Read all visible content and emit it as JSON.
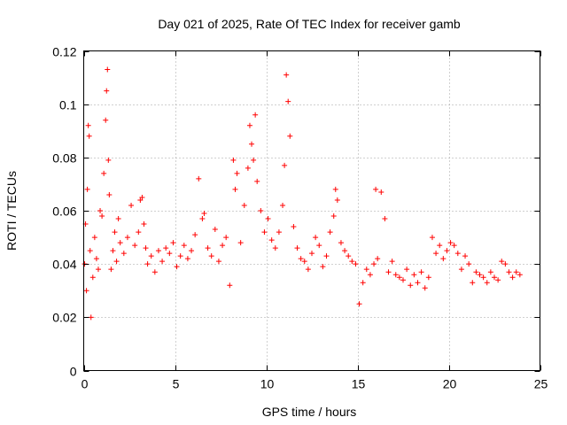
{
  "chart_data": {
    "type": "scatter",
    "title": "Day 021 of 2025, Rate Of TEC Index for receiver gamb",
    "xlabel": "GPS time / hours",
    "ylabel": "ROTI / TECUs",
    "xlim": [
      0,
      25
    ],
    "ylim": [
      0,
      0.12
    ],
    "xticks": [
      0,
      5,
      10,
      15,
      20,
      25
    ],
    "xtick_labels": [
      "0",
      "5",
      "10",
      "15",
      "20",
      "25"
    ],
    "yticks": [
      0,
      0.02,
      0.04,
      0.06,
      0.08,
      0.1,
      0.12
    ],
    "ytick_labels": [
      "0",
      "0.02",
      "0.04",
      "0.06",
      "0.08",
      "0.1",
      "0.12"
    ],
    "grid": true,
    "marker": "plus",
    "color": "#ff0000",
    "series": [
      {
        "name": "ROTI",
        "x": [
          0.05,
          0.1,
          0.15,
          0.2,
          0.25,
          0.3,
          0.35,
          0.4,
          0.5,
          0.6,
          0.7,
          0.8,
          0.9,
          1.0,
          1.1,
          1.2,
          1.25,
          1.3,
          1.35,
          1.4,
          1.5,
          1.6,
          1.7,
          1.8,
          1.9,
          2.0,
          2.2,
          2.4,
          2.6,
          2.8,
          3.0,
          3.1,
          3.2,
          3.3,
          3.4,
          3.5,
          3.7,
          3.9,
          4.1,
          4.3,
          4.5,
          4.7,
          4.9,
          5.1,
          5.3,
          5.5,
          5.7,
          5.9,
          6.1,
          6.3,
          6.5,
          6.6,
          6.8,
          7.0,
          7.2,
          7.4,
          7.6,
          7.8,
          8.0,
          8.2,
          8.3,
          8.4,
          8.6,
          8.8,
          9.0,
          9.1,
          9.2,
          9.3,
          9.4,
          9.5,
          9.7,
          9.9,
          10.1,
          10.3,
          10.5,
          10.7,
          10.9,
          11.0,
          11.1,
          11.2,
          11.3,
          11.5,
          11.7,
          11.9,
          12.1,
          12.3,
          12.5,
          12.7,
          12.9,
          13.1,
          13.3,
          13.5,
          13.7,
          13.8,
          13.9,
          14.1,
          14.3,
          14.5,
          14.7,
          14.9,
          15.1,
          15.3,
          15.5,
          15.7,
          15.9,
          16.0,
          16.1,
          16.3,
          16.5,
          16.7,
          16.9,
          17.1,
          17.3,
          17.5,
          17.7,
          17.9,
          18.1,
          18.3,
          18.5,
          18.7,
          18.9,
          19.1,
          19.3,
          19.5,
          19.7,
          19.9,
          20.1,
          20.3,
          20.5,
          20.7,
          20.9,
          21.1,
          21.3,
          21.5,
          21.7,
          21.9,
          22.1,
          22.3,
          22.5,
          22.7,
          22.9,
          23.1,
          23.3,
          23.5,
          23.7,
          23.9
        ],
        "y": [
          0.04,
          0.055,
          0.03,
          0.068,
          0.092,
          0.088,
          0.045,
          0.02,
          0.035,
          0.05,
          0.042,
          0.038,
          0.06,
          0.058,
          0.074,
          0.094,
          0.105,
          0.113,
          0.079,
          0.066,
          0.038,
          0.045,
          0.052,
          0.041,
          0.057,
          0.048,
          0.044,
          0.05,
          0.062,
          0.047,
          0.052,
          0.064,
          0.065,
          0.055,
          0.046,
          0.04,
          0.043,
          0.037,
          0.045,
          0.041,
          0.046,
          0.044,
          0.048,
          0.039,
          0.043,
          0.047,
          0.042,
          0.045,
          0.051,
          0.072,
          0.057,
          0.059,
          0.046,
          0.043,
          0.053,
          0.041,
          0.047,
          0.05,
          0.032,
          0.079,
          0.068,
          0.074,
          0.048,
          0.062,
          0.076,
          0.092,
          0.085,
          0.079,
          0.096,
          0.071,
          0.06,
          0.052,
          0.057,
          0.049,
          0.046,
          0.052,
          0.062,
          0.077,
          0.111,
          0.101,
          0.088,
          0.054,
          0.046,
          0.042,
          0.041,
          0.038,
          0.044,
          0.05,
          0.047,
          0.039,
          0.043,
          0.052,
          0.058,
          0.068,
          0.064,
          0.048,
          0.045,
          0.043,
          0.041,
          0.04,
          0.025,
          0.033,
          0.038,
          0.036,
          0.04,
          0.068,
          0.042,
          0.067,
          0.057,
          0.037,
          0.041,
          0.036,
          0.035,
          0.034,
          0.038,
          0.032,
          0.036,
          0.033,
          0.037,
          0.031,
          0.035,
          0.05,
          0.044,
          0.047,
          0.042,
          0.045,
          0.048,
          0.047,
          0.044,
          0.038,
          0.043,
          0.04,
          0.033,
          0.037,
          0.036,
          0.035,
          0.033,
          0.037,
          0.035,
          0.034,
          0.041,
          0.04,
          0.037,
          0.035,
          0.037,
          0.036
        ]
      }
    ]
  }
}
